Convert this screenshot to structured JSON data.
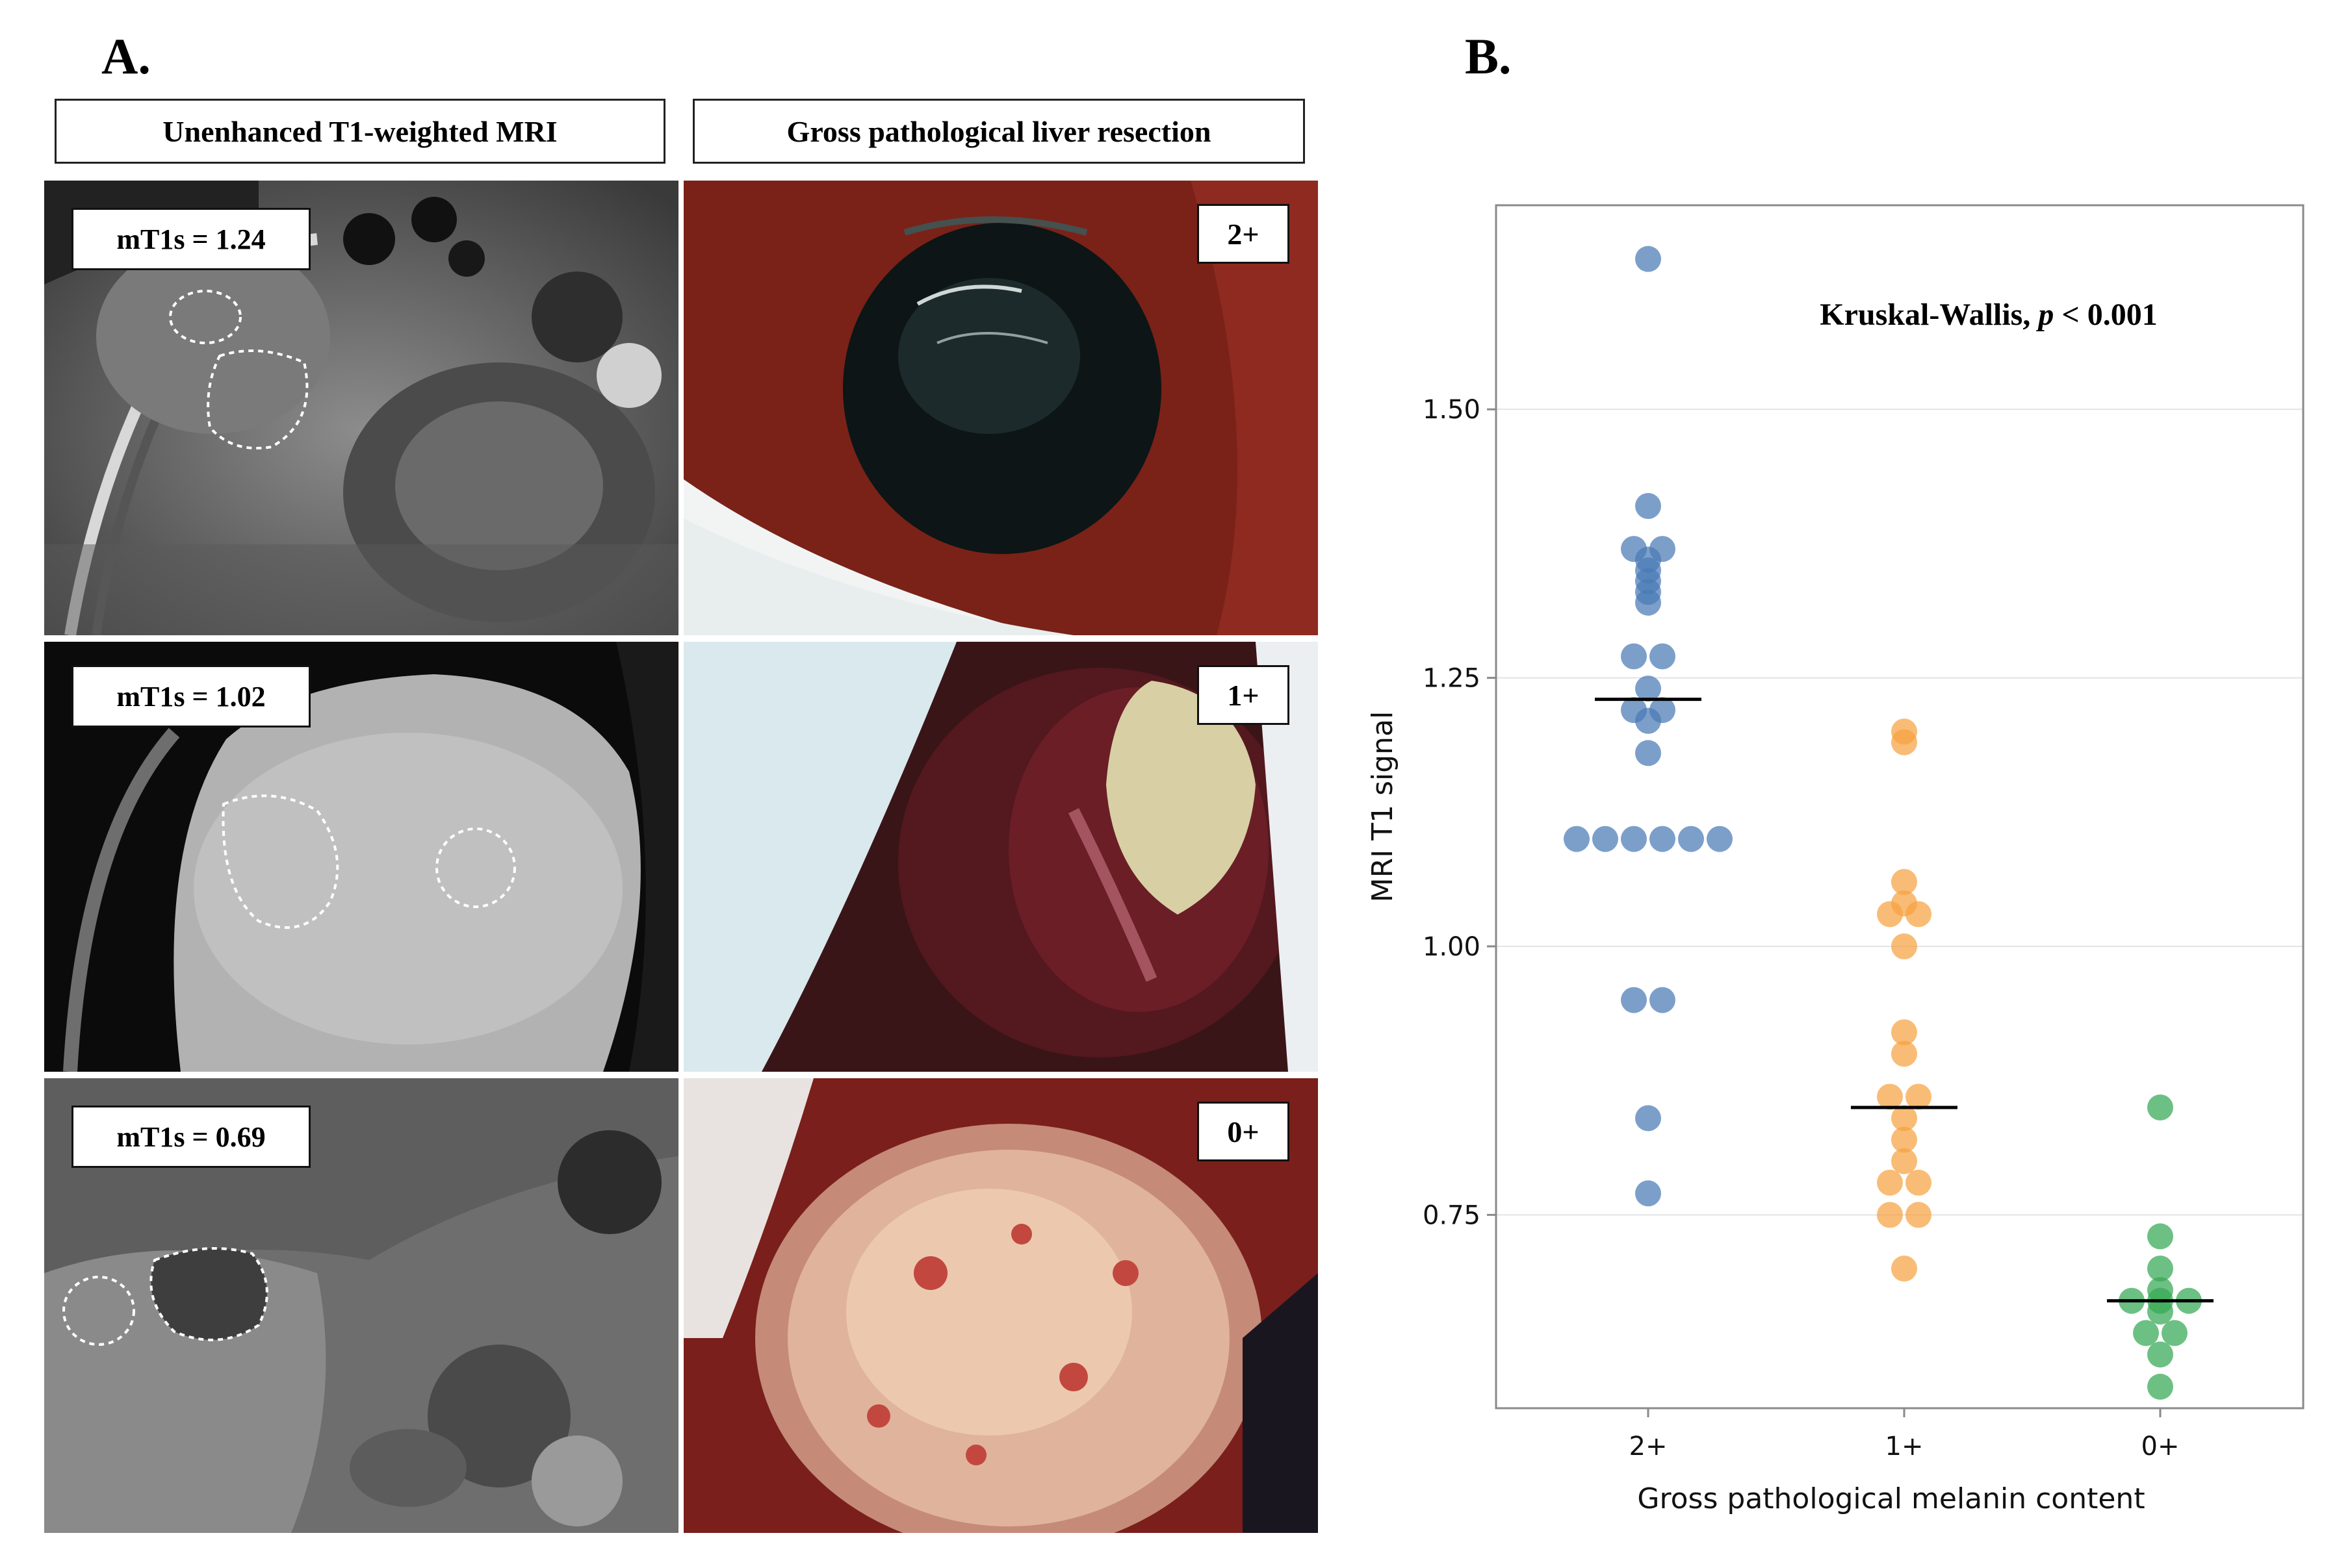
{
  "panel_a_label": "A.",
  "panel_b_label": "B.",
  "headers": {
    "mri": "Unenhanced T1-weighted MRI",
    "gross": "Gross pathological liver resection"
  },
  "rows": [
    {
      "mt1s": "mT1s = 1.24",
      "grade": "2+"
    },
    {
      "mt1s": "mT1s = 1.02",
      "grade": "1+"
    },
    {
      "mt1s": "mT1s = 0.69",
      "grade": "0+"
    }
  ],
  "colors": {
    "blue": "#4a7ab5",
    "orange": "#f7a241",
    "green": "#34a853",
    "median": "#000000",
    "grid": "#e3e3e3"
  },
  "chart_data": {
    "type": "scatter",
    "subtype": "strip-plot-with-median",
    "annotation_prefix": "Kruskal-Wallis, ",
    "annotation_italic": "p",
    "annotation_suffix": " < 0.001",
    "xlabel": "Gross pathological melanin content",
    "ylabel": "MRI T1 signal",
    "categories": [
      "2+",
      "1+",
      "0+"
    ],
    "ylim": [
      0.57,
      1.69
    ],
    "yticks": [
      0.75,
      1.0,
      1.25,
      1.5
    ],
    "ytick_labels": [
      "0.75",
      "1.00",
      "1.25",
      "1.50"
    ],
    "grid": "horizontal",
    "series": [
      {
        "category": "2+",
        "color": "#4a7ab5",
        "median": 1.23,
        "values": [
          1.64,
          1.41,
          1.37,
          1.37,
          1.36,
          1.35,
          1.34,
          1.33,
          1.32,
          1.27,
          1.27,
          1.24,
          1.22,
          1.22,
          1.21,
          1.18,
          1.1,
          1.1,
          1.1,
          1.1,
          1.1,
          1.1,
          0.95,
          0.95,
          0.84,
          0.77
        ]
      },
      {
        "category": "1+",
        "color": "#f7a241",
        "median": 0.85,
        "values": [
          1.2,
          1.19,
          1.06,
          1.04,
          1.03,
          1.03,
          1.0,
          0.92,
          0.9,
          0.86,
          0.86,
          0.84,
          0.82,
          0.8,
          0.78,
          0.78,
          0.75,
          0.75,
          0.7
        ]
      },
      {
        "category": "0+",
        "color": "#34a853",
        "median": 0.67,
        "values": [
          0.85,
          0.73,
          0.7,
          0.68,
          0.67,
          0.67,
          0.67,
          0.66,
          0.64,
          0.64,
          0.62,
          0.59
        ]
      }
    ]
  }
}
